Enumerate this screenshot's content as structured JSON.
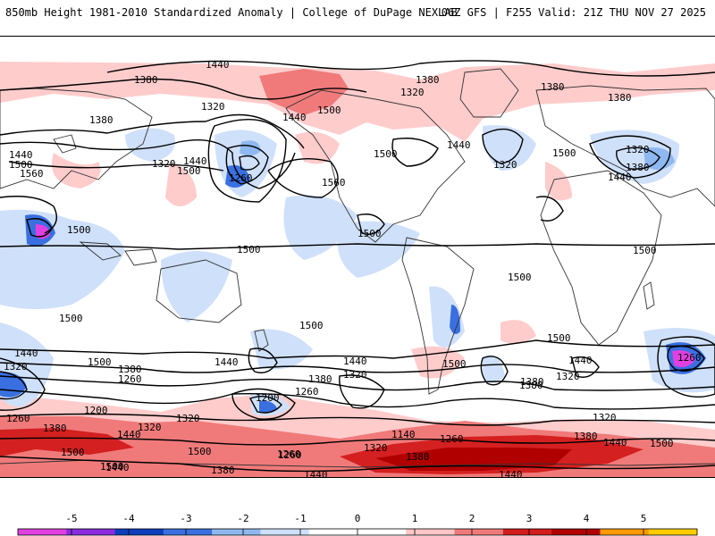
{
  "header": {
    "left": "850mb Height 1981-2010 Standardized Anomaly | College of DuPage NEXLAB",
    "right": "06Z GFS | F255 Valid: 21Z THU NOV 27 2025"
  },
  "colorbar": {
    "ticks": [
      "-5",
      "-4",
      "-3",
      "-2",
      "-1",
      "0",
      "1",
      "2",
      "3",
      "4",
      "5"
    ],
    "colors": [
      "#e040e0",
      "#8a2be2",
      "#0b3dbd",
      "#3a6fe0",
      "#8fb8f0",
      "#cfe0fa",
      "#ffffff",
      "#ffffff",
      "#ffc6c6",
      "#f07a7a",
      "#d41c1c",
      "#b00000",
      "#ff9900",
      "#ffcc00"
    ]
  },
  "colors": {
    "neg1": "#cfe0fa",
    "neg2": "#8fb8f0",
    "neg3": "#3a6fe0",
    "neg4": "#0b3dbd",
    "neg5": "#e040e0",
    "pos1": "#ffcccc",
    "pos2": "#f07a7a",
    "pos3": "#d42020",
    "pos4": "#b00000"
  },
  "contour_labels": [
    {
      "text": "1440"
    },
    {
      "text": "1380"
    },
    {
      "text": "1380"
    },
    {
      "text": "1320"
    },
    {
      "text": "1440"
    },
    {
      "text": "1500"
    },
    {
      "text": "1560"
    },
    {
      "text": "1320"
    },
    {
      "text": "1440"
    },
    {
      "text": "1500"
    },
    {
      "text": "1260"
    },
    {
      "text": "1440"
    },
    {
      "text": "1500"
    },
    {
      "text": "1560"
    },
    {
      "text": "1380"
    },
    {
      "text": "1320"
    },
    {
      "text": "1380"
    },
    {
      "text": "1380"
    },
    {
      "text": "1500"
    },
    {
      "text": "1440"
    },
    {
      "text": "1320"
    },
    {
      "text": "1500"
    },
    {
      "text": "1320"
    },
    {
      "text": "1380"
    },
    {
      "text": "1440"
    },
    {
      "text": "1500"
    },
    {
      "text": "1500"
    },
    {
      "text": "1500"
    },
    {
      "text": "1500"
    },
    {
      "text": "1500"
    },
    {
      "text": "1500"
    },
    {
      "text": "1500"
    },
    {
      "text": "1500"
    },
    {
      "text": "1440"
    },
    {
      "text": "1320"
    },
    {
      "text": "1380"
    },
    {
      "text": "1260"
    },
    {
      "text": "1200"
    },
    {
      "text": "1260"
    },
    {
      "text": "1380"
    },
    {
      "text": "1440"
    },
    {
      "text": "1200"
    },
    {
      "text": "1260"
    },
    {
      "text": "1320"
    },
    {
      "text": "1380"
    },
    {
      "text": "1440"
    },
    {
      "text": "1320"
    },
    {
      "text": "1500"
    },
    {
      "text": "1380"
    },
    {
      "text": "1320"
    },
    {
      "text": "1440"
    },
    {
      "text": "1500"
    },
    {
      "text": "1260"
    },
    {
      "text": "1320"
    },
    {
      "text": "1380"
    },
    {
      "text": "1440"
    },
    {
      "text": "1500"
    },
    {
      "text": "1140"
    },
    {
      "text": "1260"
    },
    {
      "text": "1320"
    },
    {
      "text": "1380"
    },
    {
      "text": "1440"
    },
    {
      "text": "1440"
    },
    {
      "text": "1380"
    },
    {
      "text": "1500"
    },
    {
      "text": "1260"
    },
    {
      "text": "1320"
    },
    {
      "text": "1380"
    },
    {
      "text": "1440"
    },
    {
      "text": "1500"
    },
    {
      "text": "1440"
    },
    {
      "text": "1500"
    },
    {
      "text": "1260"
    }
  ]
}
